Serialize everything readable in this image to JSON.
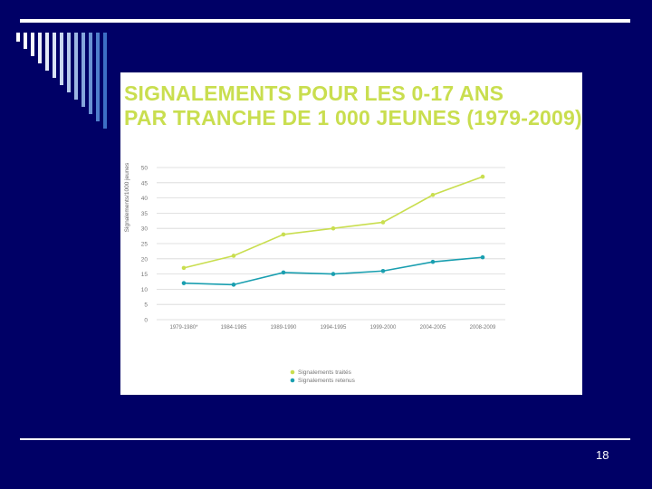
{
  "slide": {
    "page_number": "18"
  },
  "colors": {
    "background": "#000066",
    "rule": "#ffffff",
    "series_traites": "#c9de4f",
    "series_retenus": "#1a9fb0"
  },
  "chart_data": {
    "type": "line",
    "title_line1": "SIGNALEMENTS POUR LES 0-17 ANS",
    "title_line2": "PAR TRANCHE DE 1 000 JEUNES (1979-2009)",
    "ylabel": "Signalements/1000 jeunes",
    "xlabel": "",
    "ylim": [
      0,
      50
    ],
    "yticks": [
      0,
      5,
      10,
      15,
      20,
      25,
      30,
      35,
      40,
      45,
      50
    ],
    "categories": [
      "1979-1980*",
      "1984-1985",
      "1989-1990",
      "1994-1995",
      "1999-2000",
      "2004-2005",
      "2008-2009"
    ],
    "series": [
      {
        "name": "Signalements traités",
        "color": "#c9de4f",
        "values": [
          17,
          21,
          28,
          30,
          32,
          41,
          47
        ]
      },
      {
        "name": "Signalements retenus",
        "color": "#1a9fb0",
        "values": [
          12,
          11.5,
          15.5,
          15,
          16,
          19,
          20.5
        ]
      }
    ],
    "grid": true,
    "legend": "bottom-center"
  }
}
